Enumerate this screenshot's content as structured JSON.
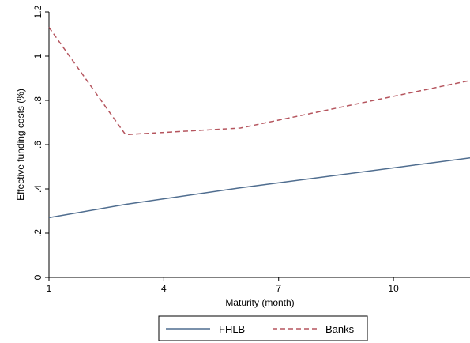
{
  "chart_data": {
    "type": "line",
    "title": "",
    "xlabel": "Maturity (month)",
    "ylabel": "Effective funding costs (%)",
    "xlim": [
      1,
      12
    ],
    "ylim": [
      0,
      1.2
    ],
    "x_ticks": [
      1,
      4,
      7,
      10
    ],
    "x_tick_labels": [
      "1",
      "4",
      "7",
      "10"
    ],
    "y_ticks": [
      0,
      0.2,
      0.4,
      0.6,
      0.8,
      1,
      1.2
    ],
    "y_tick_labels": [
      "0",
      ".2",
      ".4",
      ".6",
      ".8",
      "1",
      "1.2"
    ],
    "grid": false,
    "legend_position": "bottom",
    "series": [
      {
        "name": "FHLB",
        "color": "#4f6d8f",
        "dash": "solid",
        "x": [
          1,
          3,
          6,
          12
        ],
        "y": [
          0.27,
          0.33,
          0.405,
          0.54
        ]
      },
      {
        "name": "Banks",
        "color": "#b5555e",
        "dash": "dashed",
        "x": [
          1,
          3,
          6,
          12
        ],
        "y": [
          1.13,
          0.645,
          0.675,
          0.89
        ]
      }
    ]
  }
}
